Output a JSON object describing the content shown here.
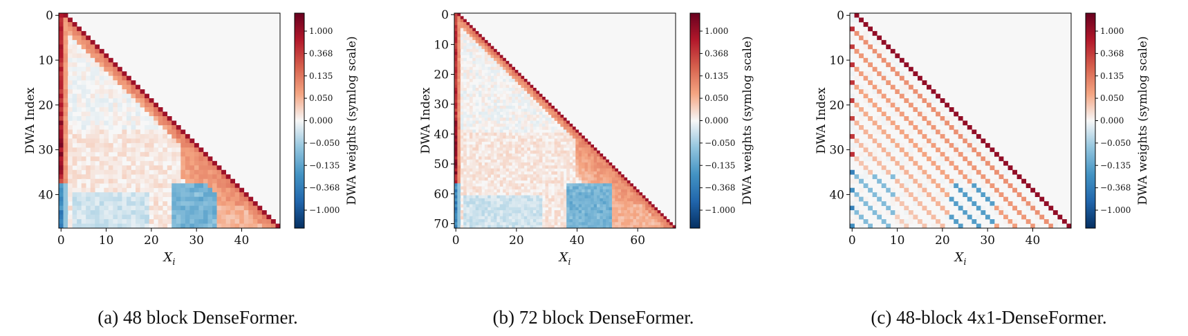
{
  "chart_data": [
    {
      "type": "heatmap",
      "caption": "(a) 48 block DenseFormer.",
      "xlabel": "X_i",
      "ylabel": "DWA Index",
      "colorbar_label": "DWA weights (symlog scale)",
      "colorbar_ticks": [
        "1.000",
        "0.368",
        "0.135",
        "0.050",
        "0.000",
        "−0.050",
        "−0.135",
        "−0.368",
        "−1.000"
      ],
      "x_ticks": [
        "0",
        "10",
        "20",
        "30",
        "40"
      ],
      "y_ticks": [
        "0",
        "10",
        "20",
        "30",
        "40"
      ],
      "n_blocks": 48,
      "dilation": 1,
      "colormap": "RdBu_r",
      "colors": {
        "max": "#67001f",
        "zero": "#f7f7f7",
        "min": "#053061"
      }
    },
    {
      "type": "heatmap",
      "caption": "(b) 72 block DenseFormer.",
      "xlabel": "X_i",
      "ylabel": "DWA Index",
      "colorbar_label": "DWA weights (symlog scale)",
      "colorbar_ticks": [
        "1.000",
        "0.368",
        "0.135",
        "0.050",
        "0.000",
        "−0.050",
        "−0.135",
        "−0.368",
        "−1.000"
      ],
      "x_ticks": [
        "0",
        "20",
        "40",
        "60"
      ],
      "y_ticks": [
        "0",
        "10",
        "20",
        "30",
        "40",
        "50",
        "60",
        "70"
      ],
      "n_blocks": 72,
      "dilation": 1,
      "colormap": "RdBu_r",
      "colors": {
        "max": "#67001f",
        "zero": "#f7f7f7",
        "min": "#053061"
      }
    },
    {
      "type": "heatmap",
      "caption": "(c) 48-block 4x1-DenseFormer.",
      "xlabel": "X_i",
      "ylabel": "DWA Index",
      "colorbar_label": "DWA weights (symlog scale)",
      "colorbar_ticks": [
        "1.000",
        "0.368",
        "0.135",
        "0.050",
        "0.000",
        "−0.050",
        "−0.135",
        "−0.368",
        "−1.000"
      ],
      "x_ticks": [
        "0",
        "10",
        "20",
        "30",
        "40"
      ],
      "y_ticks": [
        "0",
        "10",
        "20",
        "30",
        "40"
      ],
      "n_blocks": 48,
      "dilation": 4,
      "colormap": "RdBu_r",
      "colors": {
        "max": "#67001f",
        "zero": "#f7f7f7",
        "min": "#053061"
      }
    }
  ]
}
